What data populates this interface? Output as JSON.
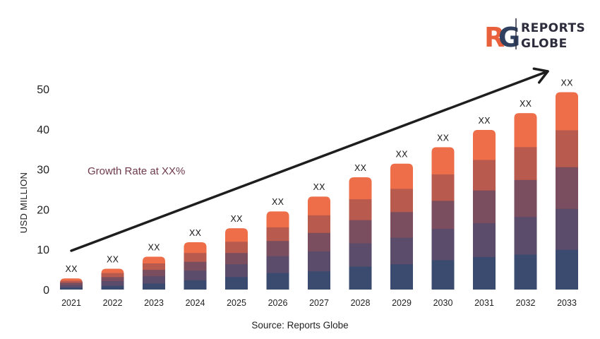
{
  "logo": {
    "mark_r": "R",
    "mark_g": "G",
    "line1": "REPORTS",
    "line2": "GLOBE",
    "mark_color_r": "#e8603c",
    "mark_color_g": "#2f4060"
  },
  "chart_data": {
    "type": "bar",
    "stacked": true,
    "categories": [
      "2021",
      "2022",
      "2023",
      "2024",
      "2025",
      "2026",
      "2027",
      "2028",
      "2029",
      "2030",
      "2031",
      "2032",
      "2033"
    ],
    "totals": [
      2.8,
      5.2,
      8.2,
      11.8,
      15.3,
      19.5,
      23.2,
      28.0,
      31.4,
      35.5,
      39.8,
      44.0,
      49.2
    ],
    "data_labels": [
      "XX",
      "XX",
      "XX",
      "XX",
      "XX",
      "XX",
      "XX",
      "XX",
      "XX",
      "XX",
      "XX",
      "XX",
      "XX"
    ],
    "series": [
      {
        "values": [
          0.6,
          1.0,
          1.6,
          2.4,
          3.2,
          4.2,
          4.6,
          5.8,
          6.4,
          7.4,
          8.2,
          8.8,
          10.0
        ]
      },
      {
        "values": [
          0.6,
          1.2,
          1.8,
          2.4,
          3.2,
          4.2,
          5.0,
          5.8,
          6.6,
          7.8,
          8.4,
          9.4,
          10.2
        ]
      },
      {
        "values": [
          0.6,
          1.0,
          1.6,
          2.2,
          2.8,
          3.8,
          4.6,
          5.8,
          6.4,
          7.0,
          8.2,
          9.2,
          10.4
        ]
      },
      {
        "values": [
          0.5,
          1.0,
          1.6,
          2.2,
          2.8,
          3.4,
          4.4,
          5.2,
          5.8,
          6.6,
          7.6,
          8.2,
          9.2
        ]
      },
      {
        "values": [
          0.5,
          1.0,
          1.6,
          2.6,
          3.3,
          3.9,
          4.6,
          5.4,
          6.2,
          6.7,
          7.4,
          8.4,
          9.4
        ]
      }
    ],
    "colors": [
      "#3b4b70",
      "#5a4c6a",
      "#7a4e5e",
      "#b85a4e",
      "#ed6e48"
    ],
    "ylabel": "USD MILLION",
    "ylim": [
      0,
      50
    ],
    "yticks": [
      0,
      10,
      20,
      30,
      40,
      50
    ],
    "annotation": "Growth Rate at XX%",
    "annotation_color": "#6e3b4a",
    "trend_arrow": true,
    "grid": false,
    "source": "Source: Reports Globe"
  }
}
